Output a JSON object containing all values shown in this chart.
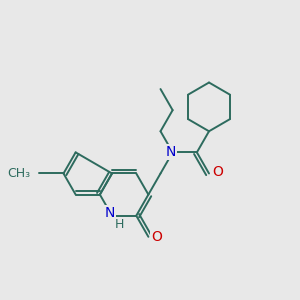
{
  "bg_color": "#e8e8e8",
  "line_color": "#2d6b5e",
  "N_color": "#0000cc",
  "O_color": "#cc0000",
  "bond_lw": 1.4,
  "font_size": 10,
  "fig_w": 3.0,
  "fig_h": 3.0,
  "dpi": 100,
  "xlim": [
    0,
    10
  ],
  "ylim": [
    0,
    10
  ]
}
